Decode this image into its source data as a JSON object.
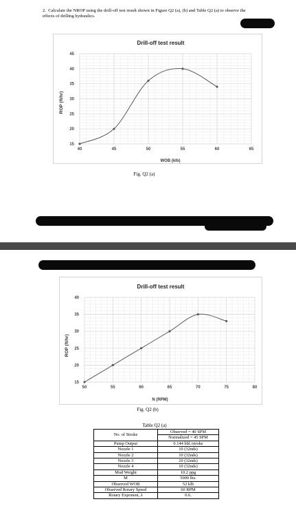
{
  "question": {
    "number": "2.",
    "text": "Calculate the NROP using the drill-off test result shown in Figure Q2 (a), (b) and Table Q2 (a) to observe the effects of drilling hydraulics."
  },
  "figures": {
    "a_caption": "Fig. Q2 (a)",
    "b_caption": "Fig. Q2 (b)"
  },
  "chart_data": [
    {
      "type": "line",
      "title": "Drill-off test result",
      "xlabel": "WOB (klb)",
      "ylabel": "ROP (ft/hr)",
      "xlim": [
        40,
        65
      ],
      "ylim": [
        15,
        45
      ],
      "xticks": [
        40,
        45,
        50,
        55,
        60,
        65
      ],
      "yticks": [
        15,
        20,
        25,
        30,
        35,
        40,
        45
      ],
      "grid": true,
      "smooth": true,
      "x": [
        40,
        45,
        50,
        55,
        60
      ],
      "y": [
        15,
        20,
        36,
        40,
        34
      ],
      "color": "#595959"
    },
    {
      "type": "line",
      "title": "Drill-off test result",
      "xlabel": "N (RPM)",
      "ylabel": "ROP (ft/hr)",
      "xlim": [
        50,
        80
      ],
      "ylim": [
        15,
        40
      ],
      "xticks": [
        50,
        55,
        60,
        65,
        70,
        75,
        80
      ],
      "yticks": [
        15,
        20,
        25,
        30,
        35,
        40
      ],
      "grid": true,
      "smooth": true,
      "x": [
        50,
        55,
        60,
        65,
        70,
        75
      ],
      "y": [
        15,
        20,
        25,
        30,
        35,
        33
      ],
      "color": "#595959"
    }
  ],
  "table": {
    "caption": "Table Q2 (a)",
    "stroke_label": "No. of Stroke",
    "stroke_values": [
      "Observed = 40 SPM",
      "Normalized = 45 SPM"
    ],
    "rows": [
      {
        "label": "Pump Output",
        "value": "0.144 bbl./stroke"
      },
      {
        "label": "Nozzle 1",
        "value": "10 (32nds)"
      },
      {
        "label": "Nozzle 2",
        "value": "10 (32nds)"
      },
      {
        "label": "Nozzle 3",
        "value": "10 (32nds)"
      },
      {
        "label": "Nozzle 4",
        "value": "10 (32nds)"
      },
      {
        "label": "Mud Weight",
        "value": "10.2 ppg"
      },
      {
        "label": "M",
        "value": "5000 lbs."
      },
      {
        "label": "Observed WOB",
        "value": "52 klb"
      },
      {
        "label": "Observed Rotary Speed",
        "value": "60 RPM"
      },
      {
        "label": "Rotary Exponent, λ",
        "value": "0.6."
      }
    ]
  }
}
